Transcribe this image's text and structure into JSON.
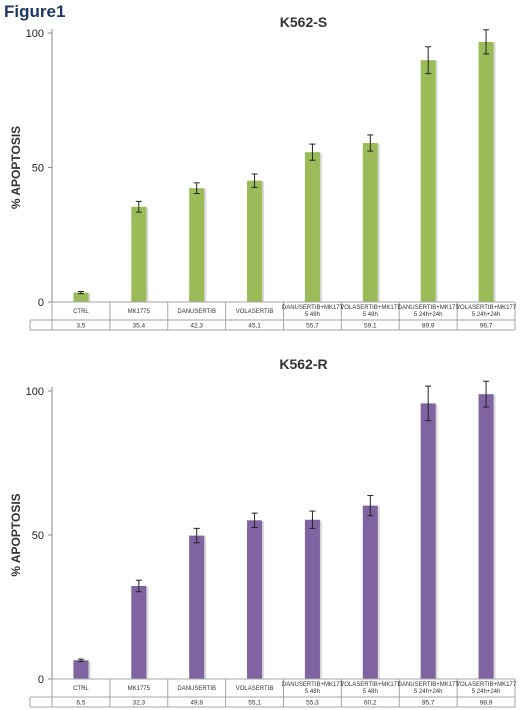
{
  "figure_label": "Figure1",
  "chart_data": [
    {
      "type": "bar",
      "title": "K562-S",
      "ylabel": "% APOPTOSIS",
      "xlabel": "",
      "ylim": [
        0,
        100
      ],
      "yticks": [
        0,
        50,
        100
      ],
      "grid": false,
      "color": "#9bbb59",
      "categories": [
        [
          "CTRL"
        ],
        [
          "MK1775"
        ],
        [
          "DANUSERTIB"
        ],
        [
          "VOLASERTIB"
        ],
        [
          "DANUSERTIB+MK177",
          "5 48h"
        ],
        [
          "VOLASERTIB+MK177",
          "5 48h"
        ],
        [
          "DANUSERTIB+MK177",
          "5 24h+24h"
        ],
        [
          "VOLASERTIB+MK177",
          "5 24h+24h"
        ]
      ],
      "values": [
        3.5,
        35.4,
        42.3,
        45.1,
        55.7,
        59.1,
        89.9,
        96.7
      ],
      "value_labels": [
        "3,5",
        "35,4",
        "42,3",
        "45,1",
        "55,7",
        "59,1",
        "89,9",
        "96,7"
      ],
      "errors": [
        0.4,
        2.0,
        2.0,
        2.5,
        3.0,
        3.0,
        5.0,
        4.5
      ]
    },
    {
      "type": "bar",
      "title": "K562-R",
      "ylabel": "% APOPTOSIS",
      "xlabel": "",
      "ylim": [
        0,
        100
      ],
      "yticks": [
        0,
        50,
        100
      ],
      "grid": false,
      "color": "#8064a2",
      "categories": [
        [
          "CTRL"
        ],
        [
          "MK1775"
        ],
        [
          "DANUSERTIB"
        ],
        [
          "VOLASERTIB"
        ],
        [
          "DANUSERTIB+MK177",
          "5 48h"
        ],
        [
          "VOLASERTIB+MK177",
          "5 48h"
        ],
        [
          "DANUSERTIB+MK177",
          "5 24h+24h"
        ],
        [
          "VOLASERTIB+MK177",
          "5 24h+24h"
        ]
      ],
      "values": [
        6.5,
        32.3,
        49.8,
        55.1,
        55.3,
        60.2,
        95.7,
        98.9
      ],
      "value_labels": [
        "6,5",
        "32,3",
        "49,8",
        "55,1",
        "55,3",
        "60,2",
        "95,7",
        "98,9"
      ],
      "errors": [
        0.4,
        2.0,
        2.5,
        2.5,
        3.0,
        3.5,
        6.0,
        4.5
      ]
    }
  ]
}
